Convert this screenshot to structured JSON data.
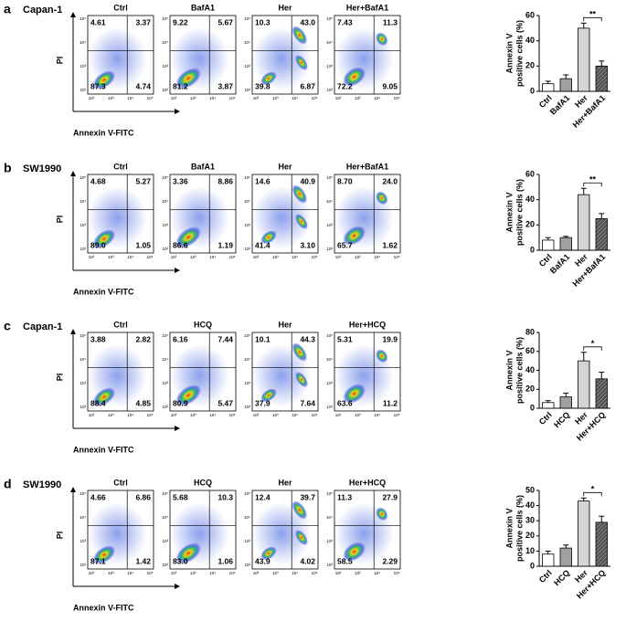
{
  "panels": [
    {
      "letter": "a",
      "cell_line": "Capan-1",
      "plots": [
        {
          "title": "Ctrl",
          "quadrants": [
            "4.61",
            "3.37",
            "87.3",
            "4.74"
          ]
        },
        {
          "title": "BafA1",
          "quadrants": [
            "9.22",
            "5.67",
            "81.2",
            "3.87"
          ]
        },
        {
          "title": "Her",
          "quadrants": [
            "10.3",
            "43.0",
            "39.8",
            "6.87"
          ]
        },
        {
          "title": "Her+BafA1",
          "quadrants": [
            "7.43",
            "11.3",
            "72.2",
            "9.05"
          ]
        }
      ]
    },
    {
      "letter": "b",
      "cell_line": "SW1990",
      "plots": [
        {
          "title": "Ctrl",
          "quadrants": [
            "4.68",
            "5.27",
            "89.0",
            "1.05"
          ]
        },
        {
          "title": "BafA1",
          "quadrants": [
            "3.36",
            "8.86",
            "86.6",
            "1.19"
          ]
        },
        {
          "title": "Her",
          "quadrants": [
            "14.6",
            "40.9",
            "41.4",
            "3.10"
          ]
        },
        {
          "title": "Her+BafA1",
          "quadrants": [
            "8.70",
            "24.0",
            "65.7",
            "1.62"
          ]
        }
      ]
    },
    {
      "letter": "c",
      "cell_line": "Capan-1",
      "plots": [
        {
          "title": "Ctrl",
          "quadrants": [
            "3.88",
            "2.82",
            "88.4",
            "4.85"
          ]
        },
        {
          "title": "HCQ",
          "quadrants": [
            "6.16",
            "7.44",
            "80.9",
            "5.47"
          ]
        },
        {
          "title": "Her",
          "quadrants": [
            "10.1",
            "44.3",
            "37.9",
            "7.64"
          ]
        },
        {
          "title": "Her+HCQ",
          "quadrants": [
            "5.31",
            "19.9",
            "63.6",
            "11.2"
          ]
        }
      ]
    },
    {
      "letter": "d",
      "cell_line": "SW1990",
      "plots": [
        {
          "title": "Ctrl",
          "quadrants": [
            "4.66",
            "6.86",
            "87.1",
            "1.42"
          ]
        },
        {
          "title": "HCQ",
          "quadrants": [
            "5.68",
            "10.3",
            "83.0",
            "1.06"
          ]
        },
        {
          "title": "Her",
          "quadrants": [
            "12.4",
            "39.7",
            "43.9",
            "4.02"
          ]
        },
        {
          "title": "Her+HCQ",
          "quadrants": [
            "11.3",
            "27.9",
            "58.5",
            "2.29"
          ]
        }
      ]
    }
  ],
  "flow_x_label": "Annexin V-FITC",
  "flow_y_label": "PI",
  "flow_axis_ticks": [
    "10²",
    "10³",
    "10⁴",
    "10⁵"
  ],
  "chart_data": [
    {
      "type": "bar",
      "ylabel": [
        "Annexin V",
        "positive cells (%)"
      ],
      "categories": [
        "Ctrl",
        "BafA1",
        "Her",
        "Her+BafA1"
      ],
      "values": [
        6,
        10,
        50,
        20
      ],
      "errors": [
        2,
        3,
        4,
        4
      ],
      "colors": [
        "#ffffff",
        "#a0a0a0",
        "#d4d4d4",
        "#505050"
      ],
      "ylim": [
        0,
        60
      ],
      "yticks": [
        0,
        20,
        40,
        60
      ],
      "significance": "**"
    },
    {
      "type": "bar",
      "ylabel": [
        "Annexin V",
        "positive cells (%)"
      ],
      "categories": [
        "Ctrl",
        "BafA1",
        "Her",
        "Her+BafA1"
      ],
      "values": [
        8,
        10,
        44,
        25
      ],
      "errors": [
        2,
        1,
        5,
        4
      ],
      "colors": [
        "#ffffff",
        "#a0a0a0",
        "#d4d4d4",
        "#505050"
      ],
      "ylim": [
        0,
        60
      ],
      "yticks": [
        0,
        20,
        40,
        60
      ],
      "significance": "**"
    },
    {
      "type": "bar",
      "ylabel": [
        "Annexin V",
        "positive cells (%)"
      ],
      "categories": [
        "Ctrl",
        "HCQ",
        "Her",
        "Her+HCQ"
      ],
      "values": [
        6,
        12,
        50,
        31
      ],
      "errors": [
        2,
        4,
        9,
        7
      ],
      "colors": [
        "#ffffff",
        "#a0a0a0",
        "#d4d4d4",
        "#505050"
      ],
      "ylim": [
        0,
        80
      ],
      "yticks": [
        0,
        20,
        40,
        60,
        80
      ],
      "significance": "*"
    },
    {
      "type": "bar",
      "ylabel": [
        "Annexin V",
        "positive cells (%)"
      ],
      "categories": [
        "Ctrl",
        "HCQ",
        "Her",
        "Her+HCQ"
      ],
      "values": [
        8,
        12,
        43,
        29
      ],
      "errors": [
        2,
        2,
        2,
        4
      ],
      "colors": [
        "#ffffff",
        "#a0a0a0",
        "#d4d4d4",
        "#505050"
      ],
      "ylim": [
        0,
        50
      ],
      "yticks": [
        0,
        10,
        20,
        30,
        40,
        50
      ],
      "significance": "*"
    }
  ]
}
